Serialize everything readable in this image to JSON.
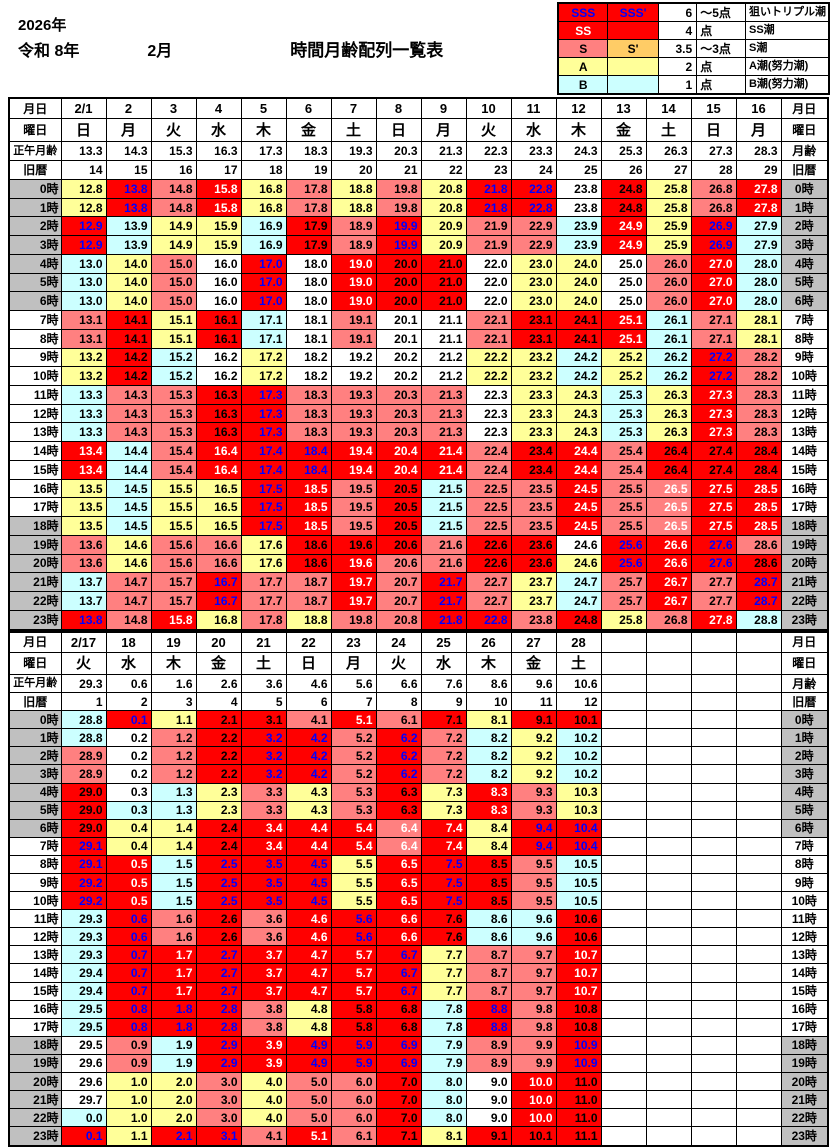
{
  "title": {
    "year_line": "2026年",
    "era_line": "令和 8年",
    "month": "2月",
    "main": "時間月齢配列一覧表"
  },
  "colors": {
    "R": "#ff0000",
    "P": "#ff8080",
    "Y": "#ffff99",
    "C": "#ccffff",
    "W": "#ffffff",
    "O": "#ffcc66",
    "night_gray": "#c0c0c0",
    "k": "#000000",
    "b": "#0000ff",
    "w": "#ffffff"
  },
  "legend": {
    "rows": [
      {
        "c1": "SSS",
        "c2": "SSS'",
        "num": "6",
        "pts": "～5点",
        "desc": "狙いトリプル潮",
        "bg1": "R",
        "bg2": "R",
        "fg1": "b",
        "fg2": "b"
      },
      {
        "c1": "SS",
        "c2": "",
        "num": "4",
        "pts": "点",
        "desc": "SS潮",
        "bg1": "R",
        "bg2": "R",
        "fg1": "w",
        "fg2": "w"
      },
      {
        "c1": "S",
        "c2": "S'",
        "num": "3.5",
        "pts": "～3点",
        "desc": "S潮",
        "bg1": "P",
        "bg2": "O",
        "fg1": "k",
        "fg2": "k"
      },
      {
        "c1": "A",
        "c2": "",
        "num": "2",
        "pts": "点",
        "desc": "A潮(努力潮)",
        "bg1": "Y",
        "bg2": "Y",
        "fg1": "k",
        "fg2": "k"
      },
      {
        "c1": "B",
        "c2": "",
        "num": "1",
        "pts": "点",
        "desc": "B潮(努力潮)",
        "bg1": "C",
        "bg2": "C",
        "fg1": "k",
        "fg2": "k"
      }
    ]
  },
  "table1": {
    "cols": 16,
    "left_labels": [
      "月日",
      "曜日",
      "正午月齢",
      "旧暦"
    ],
    "right_labels": [
      "月日",
      "曜日",
      "月齢",
      "旧暦"
    ],
    "dates": [
      "2/1",
      "2",
      "3",
      "4",
      "5",
      "6",
      "7",
      "8",
      "9",
      "10",
      "11",
      "12",
      "13",
      "14",
      "15",
      "16"
    ],
    "weekdays": [
      "日",
      "月",
      "火",
      "水",
      "木",
      "金",
      "土",
      "日",
      "月",
      "火",
      "水",
      "木",
      "金",
      "土",
      "日",
      "月"
    ],
    "noon_age": [
      "13.3",
      "14.3",
      "15.3",
      "16.3",
      "17.3",
      "18.3",
      "19.3",
      "20.3",
      "21.3",
      "22.3",
      "23.3",
      "24.3",
      "25.3",
      "26.3",
      "27.3",
      "28.3"
    ],
    "old_cal": [
      "14",
      "15",
      "16",
      "17",
      "18",
      "19",
      "20",
      "21",
      "22",
      "23",
      "24",
      "25",
      "26",
      "27",
      "28",
      "29"
    ],
    "hours": [
      "0時",
      "1時",
      "2時",
      "3時",
      "4時",
      "5時",
      "6時",
      "7時",
      "8時",
      "9時",
      "10時",
      "11時",
      "12時",
      "13時",
      "14時",
      "15時",
      "16時",
      "17時",
      "18時",
      "19時",
      "20時",
      "21時",
      "22時",
      "23時"
    ],
    "night_hours": [
      0,
      1,
      2,
      3,
      4,
      5,
      6,
      18,
      19,
      20,
      21,
      22,
      23
    ],
    "values": [
      [
        "12.8",
        "13.8",
        "14.8",
        "15.8",
        "16.8",
        "17.8",
        "18.8",
        "19.8",
        "20.8",
        "21.8",
        "22.8",
        "23.8",
        "24.8",
        "25.8",
        "26.8",
        "27.8"
      ],
      [
        "12.8",
        "13.8",
        "14.8",
        "15.8",
        "16.8",
        "17.8",
        "18.8",
        "19.8",
        "20.8",
        "21.8",
        "22.8",
        "23.8",
        "24.8",
        "25.8",
        "26.8",
        "27.8"
      ],
      [
        "12.9",
        "13.9",
        "14.9",
        "15.9",
        "16.9",
        "17.9",
        "18.9",
        "19.9",
        "20.9",
        "21.9",
        "22.9",
        "23.9",
        "24.9",
        "25.9",
        "26.9",
        "27.9"
      ],
      [
        "12.9",
        "13.9",
        "14.9",
        "15.9",
        "16.9",
        "17.9",
        "18.9",
        "19.9",
        "20.9",
        "21.9",
        "22.9",
        "23.9",
        "24.9",
        "25.9",
        "26.9",
        "27.9"
      ],
      [
        "13.0",
        "14.0",
        "15.0",
        "16.0",
        "17.0",
        "18.0",
        "19.0",
        "20.0",
        "21.0",
        "22.0",
        "23.0",
        "24.0",
        "25.0",
        "26.0",
        "27.0",
        "28.0"
      ],
      [
        "13.0",
        "14.0",
        "15.0",
        "16.0",
        "17.0",
        "18.0",
        "19.0",
        "20.0",
        "21.0",
        "22.0",
        "23.0",
        "24.0",
        "25.0",
        "26.0",
        "27.0",
        "28.0"
      ],
      [
        "13.0",
        "14.0",
        "15.0",
        "16.0",
        "17.0",
        "18.0",
        "19.0",
        "20.0",
        "21.0",
        "22.0",
        "23.0",
        "24.0",
        "25.0",
        "26.0",
        "27.0",
        "28.0"
      ],
      [
        "13.1",
        "14.1",
        "15.1",
        "16.1",
        "17.1",
        "18.1",
        "19.1",
        "20.1",
        "21.1",
        "22.1",
        "23.1",
        "24.1",
        "25.1",
        "26.1",
        "27.1",
        "28.1"
      ],
      [
        "13.1",
        "14.1",
        "15.1",
        "16.1",
        "17.1",
        "18.1",
        "19.1",
        "20.1",
        "21.1",
        "22.1",
        "23.1",
        "24.1",
        "25.1",
        "26.1",
        "27.1",
        "28.1"
      ],
      [
        "13.2",
        "14.2",
        "15.2",
        "16.2",
        "17.2",
        "18.2",
        "19.2",
        "20.2",
        "21.2",
        "22.2",
        "23.2",
        "24.2",
        "25.2",
        "26.2",
        "27.2",
        "28.2"
      ],
      [
        "13.2",
        "14.2",
        "15.2",
        "16.2",
        "17.2",
        "18.2",
        "19.2",
        "20.2",
        "21.2",
        "22.2",
        "23.2",
        "24.2",
        "25.2",
        "26.2",
        "27.2",
        "28.2"
      ],
      [
        "13.3",
        "14.3",
        "15.3",
        "16.3",
        "17.3",
        "18.3",
        "19.3",
        "20.3",
        "21.3",
        "22.3",
        "23.3",
        "24.3",
        "25.3",
        "26.3",
        "27.3",
        "28.3"
      ],
      [
        "13.3",
        "14.3",
        "15.3",
        "16.3",
        "17.3",
        "18.3",
        "19.3",
        "20.3",
        "21.3",
        "22.3",
        "23.3",
        "24.3",
        "25.3",
        "26.3",
        "27.3",
        "28.3"
      ],
      [
        "13.3",
        "14.3",
        "15.3",
        "16.3",
        "17.3",
        "18.3",
        "19.3",
        "20.3",
        "21.3",
        "22.3",
        "23.3",
        "24.3",
        "25.3",
        "26.3",
        "27.3",
        "28.3"
      ],
      [
        "13.4",
        "14.4",
        "15.4",
        "16.4",
        "17.4",
        "18.4",
        "19.4",
        "20.4",
        "21.4",
        "22.4",
        "23.4",
        "24.4",
        "25.4",
        "26.4",
        "27.4",
        "28.4"
      ],
      [
        "13.4",
        "14.4",
        "15.4",
        "16.4",
        "17.4",
        "18.4",
        "19.4",
        "20.4",
        "21.4",
        "22.4",
        "23.4",
        "24.4",
        "25.4",
        "26.4",
        "27.4",
        "28.4"
      ],
      [
        "13.5",
        "14.5",
        "15.5",
        "16.5",
        "17.5",
        "18.5",
        "19.5",
        "20.5",
        "21.5",
        "22.5",
        "23.5",
        "24.5",
        "25.5",
        "26.5",
        "27.5",
        "28.5"
      ],
      [
        "13.5",
        "14.5",
        "15.5",
        "16.5",
        "17.5",
        "18.5",
        "19.5",
        "20.5",
        "21.5",
        "22.5",
        "23.5",
        "24.5",
        "25.5",
        "26.5",
        "27.5",
        "28.5"
      ],
      [
        "13.5",
        "14.5",
        "15.5",
        "16.5",
        "17.5",
        "18.5",
        "19.5",
        "20.5",
        "21.5",
        "22.5",
        "23.5",
        "24.5",
        "25.5",
        "26.5",
        "27.5",
        "28.5"
      ],
      [
        "13.6",
        "14.6",
        "15.6",
        "16.6",
        "17.6",
        "18.6",
        "19.6",
        "20.6",
        "21.6",
        "22.6",
        "23.6",
        "24.6",
        "25.6",
        "26.6",
        "27.6",
        "28.6"
      ],
      [
        "13.6",
        "14.6",
        "15.6",
        "16.6",
        "17.6",
        "18.6",
        "19.6",
        "20.6",
        "21.6",
        "22.6",
        "23.6",
        "24.6",
        "25.6",
        "26.6",
        "27.6",
        "28.6"
      ],
      [
        "13.7",
        "14.7",
        "15.7",
        "16.7",
        "17.7",
        "18.7",
        "19.7",
        "20.7",
        "21.7",
        "22.7",
        "23.7",
        "24.7",
        "25.7",
        "26.7",
        "27.7",
        "28.7"
      ],
      [
        "13.7",
        "14.7",
        "15.7",
        "16.7",
        "17.7",
        "18.7",
        "19.7",
        "20.7",
        "21.7",
        "22.7",
        "23.7",
        "24.7",
        "25.7",
        "26.7",
        "27.7",
        "28.7"
      ],
      [
        "13.8",
        "14.8",
        "15.8",
        "16.8",
        "17.8",
        "18.8",
        "19.8",
        "20.8",
        "21.8",
        "22.8",
        "23.8",
        "24.8",
        "25.8",
        "26.8",
        "27.8",
        "28.8"
      ]
    ],
    "bg": [
      "YRPRYPYPYRRWRYPR",
      "YRPRYPYPYRRWRYPR",
      "RCYYCRPRYPPCRYRC",
      "RCYYCRPRYPPCRYRC",
      "CYPWRWRRRWYYWPRC",
      "CYPWRWRRRWYYWPRC",
      "CYPWRWRRRWYYWPRC",
      "PRYRCWPWWPRRRCPY",
      "PRYRCWPWWPRRRCPY",
      "YRCWYWWWWYYCYCRP",
      "YRCWYWWWWYYCYCRP",
      "CPPRRPPPPWYYCYRP",
      "CPPRRPPPPWYYCYRP",
      "CPPRRPPPPWYYCYRP",
      "RCPRRRRRRPRRPRRR",
      "RCPRRRRRRPRRPRRR",
      "YCYYRRPRCPPRPPRR",
      "YCYYRRPRCPPRPPRR",
      "YCYYRRPRCPPRPPRR",
      "PYPPYRRRPRRWRRRP",
      "PYPPYRRPPRRYRRRR",
      "CPPRPPRPRPYCPRPR",
      "CPPRPPRPRPYCPRPR",
      "RPRYPYPPRRPRYPRC"
    ],
    "fg": [
      "kbkwkkkkkbbkkkkw",
      "kbkwkkkkkbbkkkkw",
      "bkkkkkkbkkkkwkbk",
      "bkkkkkkbkkkkwkbk",
      "kkkkbkwkkkkkkkwk",
      "kkkkbkwkkkkkkkwk",
      "kkkkbkwkkkkkkkwk",
      "kkkkkkkkkkkkwkkk",
      "kkkkkkkkkkkkwkkk",
      "kkkkkkkkkkkkkkbk",
      "kkkkkkkkkkkkkkbk",
      "kkkkbkkkkkkkkkwk",
      "kkkkbkkkkkkkkkwk",
      "kkkkbkkkkkkkkkwk",
      "wkkwbbwwwkkwkkkk",
      "wkkwbbwwwkkwkkkk",
      "kkkkbwkkkkkwkwww",
      "kkkkbwkkkkkwkwww",
      "kkkkbwkkkkkwkwww",
      "kkkkkkkkkkkkbwbk",
      "kkkkkkwkkkkkbwbk",
      "kkkbkkwkbkkkkwkb",
      "kkkbkkwkbkkkkwkb",
      "bkwkkkkkbbkkkkwk"
    ]
  },
  "table2": {
    "cols": 16,
    "left_labels": [
      "月日",
      "曜日",
      "正午月齢",
      "旧暦"
    ],
    "right_labels": [
      "月日",
      "曜日",
      "月齢",
      "旧暦"
    ],
    "dates": [
      "2/17",
      "18",
      "19",
      "20",
      "21",
      "22",
      "23",
      "24",
      "25",
      "26",
      "27",
      "28"
    ],
    "weekdays": [
      "火",
      "水",
      "木",
      "金",
      "土",
      "日",
      "月",
      "火",
      "水",
      "木",
      "金",
      "土"
    ],
    "noon_age": [
      "29.3",
      "0.6",
      "1.6",
      "2.6",
      "3.6",
      "4.6",
      "5.6",
      "6.6",
      "7.6",
      "8.6",
      "9.6",
      "10.6"
    ],
    "old_cal": [
      "1",
      "2",
      "3",
      "4",
      "5",
      "6",
      "7",
      "8",
      "9",
      "10",
      "11",
      "12"
    ],
    "hours": [
      "0時",
      "1時",
      "2時",
      "3時",
      "4時",
      "5時",
      "6時",
      "7時",
      "8時",
      "9時",
      "10時",
      "11時",
      "12時",
      "13時",
      "14時",
      "15時",
      "16時",
      "17時",
      "18時",
      "19時",
      "20時",
      "21時",
      "22時",
      "23時"
    ],
    "night_hours": [
      0,
      1,
      2,
      3,
      4,
      5,
      6,
      18,
      19,
      20,
      21,
      22,
      23
    ],
    "values": [
      [
        "28.8",
        "0.1",
        "1.1",
        "2.1",
        "3.1",
        "4.1",
        "5.1",
        "6.1",
        "7.1",
        "8.1",
        "9.1",
        "10.1"
      ],
      [
        "28.8",
        "0.2",
        "1.2",
        "2.2",
        "3.2",
        "4.2",
        "5.2",
        "6.2",
        "7.2",
        "8.2",
        "9.2",
        "10.2"
      ],
      [
        "28.9",
        "0.2",
        "1.2",
        "2.2",
        "3.2",
        "4.2",
        "5.2",
        "6.2",
        "7.2",
        "8.2",
        "9.2",
        "10.2"
      ],
      [
        "28.9",
        "0.2",
        "1.2",
        "2.2",
        "3.2",
        "4.2",
        "5.2",
        "6.2",
        "7.2",
        "8.2",
        "9.2",
        "10.2"
      ],
      [
        "29.0",
        "0.3",
        "1.3",
        "2.3",
        "3.3",
        "4.3",
        "5.3",
        "6.3",
        "7.3",
        "8.3",
        "9.3",
        "10.3"
      ],
      [
        "29.0",
        "0.3",
        "1.3",
        "2.3",
        "3.3",
        "4.3",
        "5.3",
        "6.3",
        "7.3",
        "8.3",
        "9.3",
        "10.3"
      ],
      [
        "29.0",
        "0.4",
        "1.4",
        "2.4",
        "3.4",
        "4.4",
        "5.4",
        "6.4",
        "7.4",
        "8.4",
        "9.4",
        "10.4"
      ],
      [
        "29.1",
        "0.4",
        "1.4",
        "2.4",
        "3.4",
        "4.4",
        "5.4",
        "6.4",
        "7.4",
        "8.4",
        "9.4",
        "10.4"
      ],
      [
        "29.1",
        "0.5",
        "1.5",
        "2.5",
        "3.5",
        "4.5",
        "5.5",
        "6.5",
        "7.5",
        "8.5",
        "9.5",
        "10.5"
      ],
      [
        "29.2",
        "0.5",
        "1.5",
        "2.5",
        "3.5",
        "4.5",
        "5.5",
        "6.5",
        "7.5",
        "8.5",
        "9.5",
        "10.5"
      ],
      [
        "29.2",
        "0.5",
        "1.5",
        "2.5",
        "3.5",
        "4.5",
        "5.5",
        "6.5",
        "7.5",
        "8.5",
        "9.5",
        "10.5"
      ],
      [
        "29.3",
        "0.6",
        "1.6",
        "2.6",
        "3.6",
        "4.6",
        "5.6",
        "6.6",
        "7.6",
        "8.6",
        "9.6",
        "10.6"
      ],
      [
        "29.3",
        "0.6",
        "1.6",
        "2.6",
        "3.6",
        "4.6",
        "5.6",
        "6.6",
        "7.6",
        "8.6",
        "9.6",
        "10.6"
      ],
      [
        "29.3",
        "0.7",
        "1.7",
        "2.7",
        "3.7",
        "4.7",
        "5.7",
        "6.7",
        "7.7",
        "8.7",
        "9.7",
        "10.7"
      ],
      [
        "29.4",
        "0.7",
        "1.7",
        "2.7",
        "3.7",
        "4.7",
        "5.7",
        "6.7",
        "7.7",
        "8.7",
        "9.7",
        "10.7"
      ],
      [
        "29.4",
        "0.7",
        "1.7",
        "2.7",
        "3.7",
        "4.7",
        "5.7",
        "6.7",
        "7.7",
        "8.7",
        "9.7",
        "10.7"
      ],
      [
        "29.5",
        "0.8",
        "1.8",
        "2.8",
        "3.8",
        "4.8",
        "5.8",
        "6.8",
        "7.8",
        "8.8",
        "9.8",
        "10.8"
      ],
      [
        "29.5",
        "0.8",
        "1.8",
        "2.8",
        "3.8",
        "4.8",
        "5.8",
        "6.8",
        "7.8",
        "8.8",
        "9.8",
        "10.8"
      ],
      [
        "29.5",
        "0.9",
        "1.9",
        "2.9",
        "3.9",
        "4.9",
        "5.9",
        "6.9",
        "7.9",
        "8.9",
        "9.9",
        "10.9"
      ],
      [
        "29.6",
        "0.9",
        "1.9",
        "2.9",
        "3.9",
        "4.9",
        "5.9",
        "6.9",
        "7.9",
        "8.9",
        "9.9",
        "10.9"
      ],
      [
        "29.6",
        "1.0",
        "2.0",
        "3.0",
        "4.0",
        "5.0",
        "6.0",
        "7.0",
        "8.0",
        "9.0",
        "10.0",
        "11.0"
      ],
      [
        "29.7",
        "1.0",
        "2.0",
        "3.0",
        "4.0",
        "5.0",
        "6.0",
        "7.0",
        "8.0",
        "9.0",
        "10.0",
        "11.0"
      ],
      [
        "0.0",
        "1.0",
        "2.0",
        "3.0",
        "4.0",
        "5.0",
        "6.0",
        "7.0",
        "8.0",
        "9.0",
        "10.0",
        "11.0"
      ],
      [
        "0.1",
        "1.1",
        "2.1",
        "3.1",
        "4.1",
        "5.1",
        "6.1",
        "7.1",
        "8.1",
        "9.1",
        "10.1",
        "11.1"
      ]
    ],
    "bg": [
      "CRYRRPRPRYRR",
      "CWPRRRPRPCYC",
      "PWPRRRPRPCYC",
      "PWPRRRPRPCYC",
      "RWCYPYPRYRPY",
      "RCCYPYPRYRPY",
      "RYYRRRRPRYRR",
      "RYYRRRRPRYRR",
      "RRCRRRYRRRPC",
      "RRCRRRYRRRPC",
      "RRCRRRYRRRPC",
      "CRPRPRRRRCCR",
      "CRPRPRRRRCCR",
      "CRRRRRRRYPPR",
      "CRRRRRRRYPPR",
      "CRRRRRRRYPPR",
      "CRRRPYRRCRPR",
      "CRRRPYRRCRPR",
      "WPCRRRRRCPPR",
      "WPCRRRRRCPPR",
      "WYYPYPPRCWRR",
      "WYYPYPPRCWRR",
      "CYYPYPPRCWRR",
      "RYRRPRPRYRRR"
    ],
    "fg": [
      "kbkkkkwkkkkk",
      "kkkkbbkbkkkk",
      "kkkkbbkbkkkk",
      "kkkkbbkbkkkk",
      "kkkkkkkkkwkk",
      "kkkkkkkkkwkk",
      "kkkkwwwwwkbb",
      "bkkkwwwwwkbb",
      "bwkbbbkwbkkk",
      "bwkbbbkwbkkk",
      "bwkbbbkwbkkk",
      "kbkkkwbwkkkk",
      "kbkkkwbwkkkk",
      "kbwbwwwbkkkw",
      "kbwbwwwbkkkw",
      "kbwbwwwbkkkw",
      "kbbbkkkkkbkk",
      "kbbbkkkkkbkk",
      "kkkbwbbbkkkb",
      "kkkbwbbbkkkb",
      "kkkkkkkkkkwk",
      "kkkkkkkkkkwk",
      "kkkkkkkkkkwk",
      "bkbbkwkkkkkk"
    ]
  }
}
